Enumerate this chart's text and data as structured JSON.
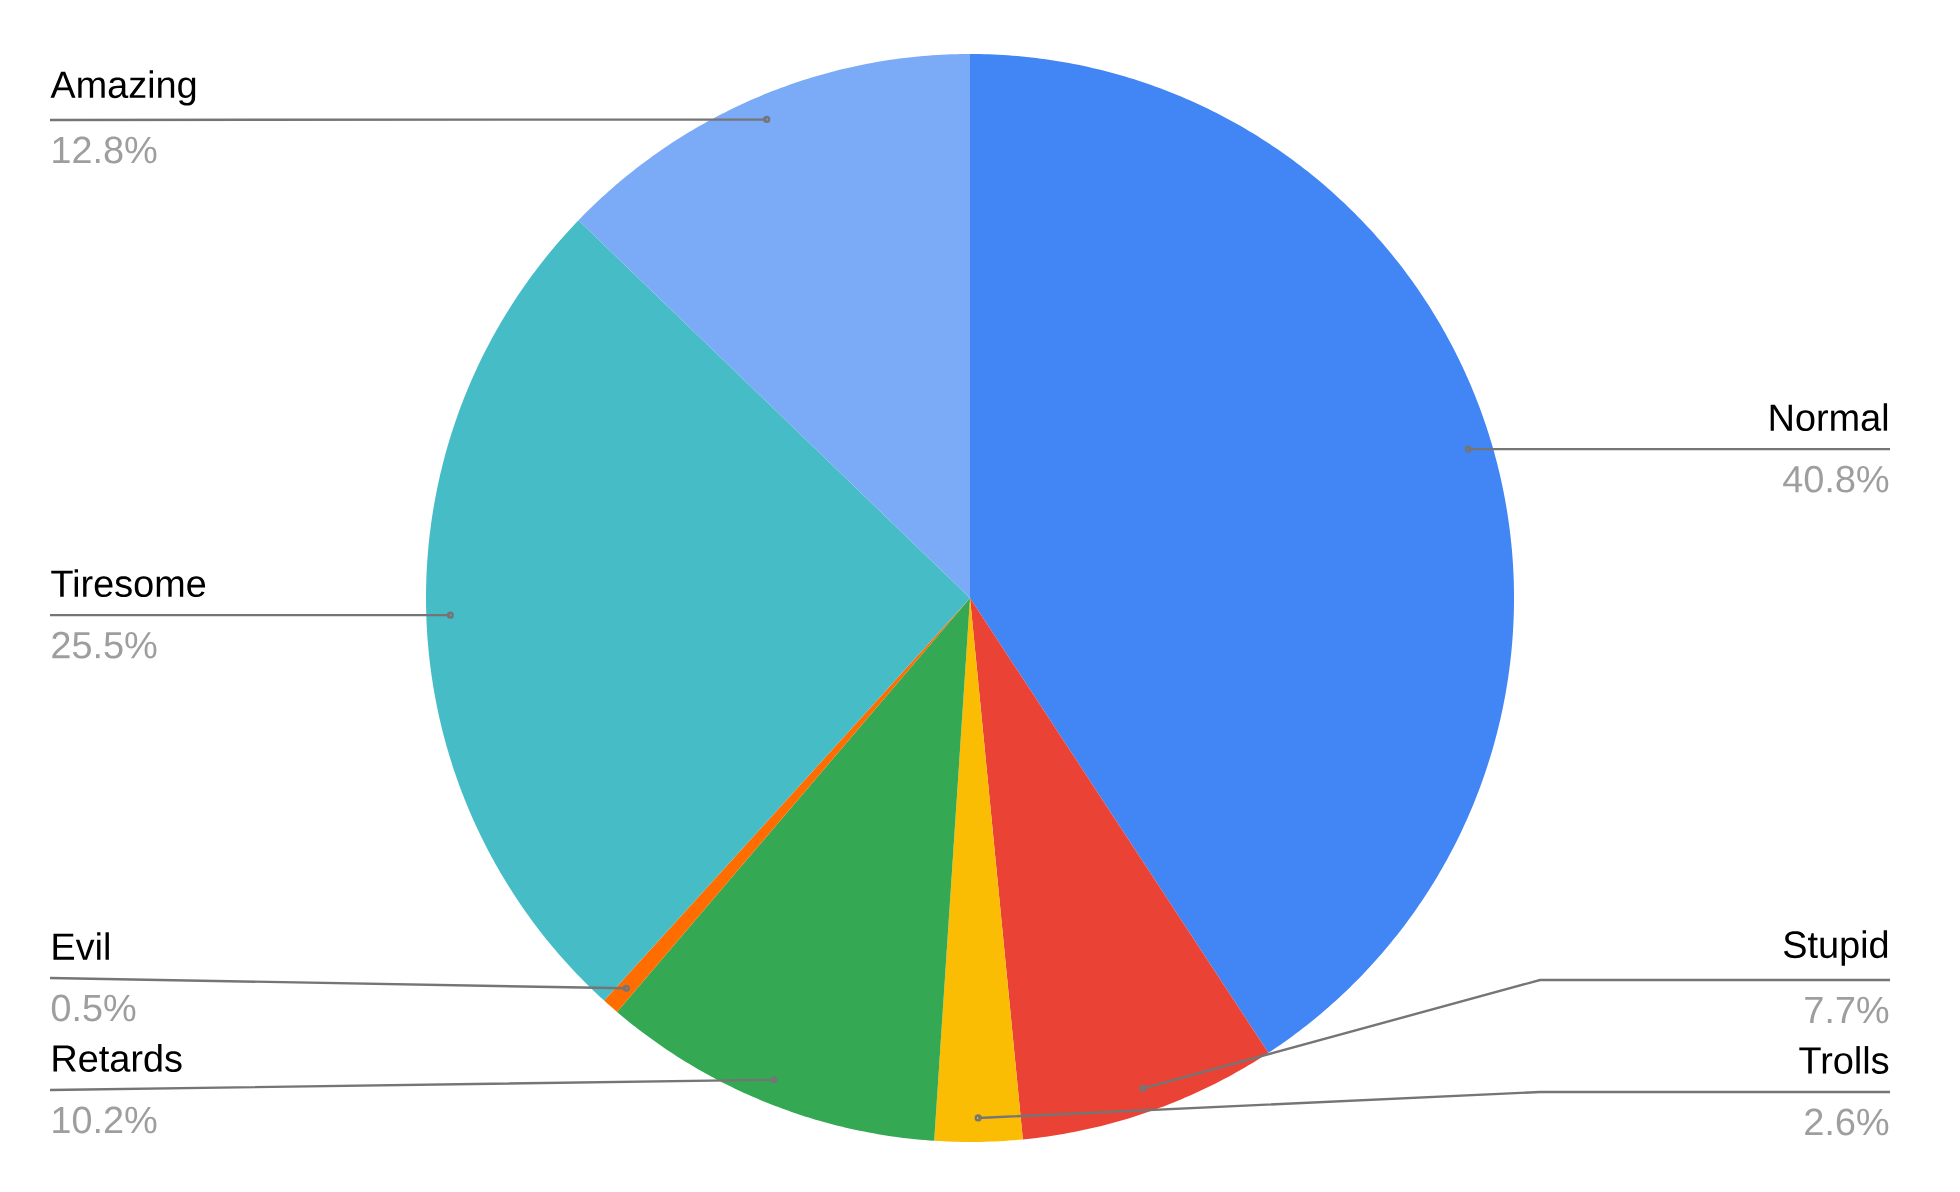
{
  "chart_data": {
    "type": "pie",
    "categories": [
      "Normal",
      "Stupid",
      "Trolls",
      "Retards",
      "Evil",
      "Tiresome",
      "Amazing"
    ],
    "values": [
      40.8,
      7.7,
      2.6,
      10.2,
      0.5,
      25.5,
      12.8
    ],
    "value_labels": [
      "40.8%",
      "7.7%",
      "2.6%",
      "10.2%",
      "0.5%",
      "25.5%",
      "12.8%"
    ],
    "colors": [
      "#4285f4",
      "#ea4335",
      "#fbbc04",
      "#34a853",
      "#ff6d01",
      "#46bdc6",
      "#7baaf7"
    ]
  }
}
